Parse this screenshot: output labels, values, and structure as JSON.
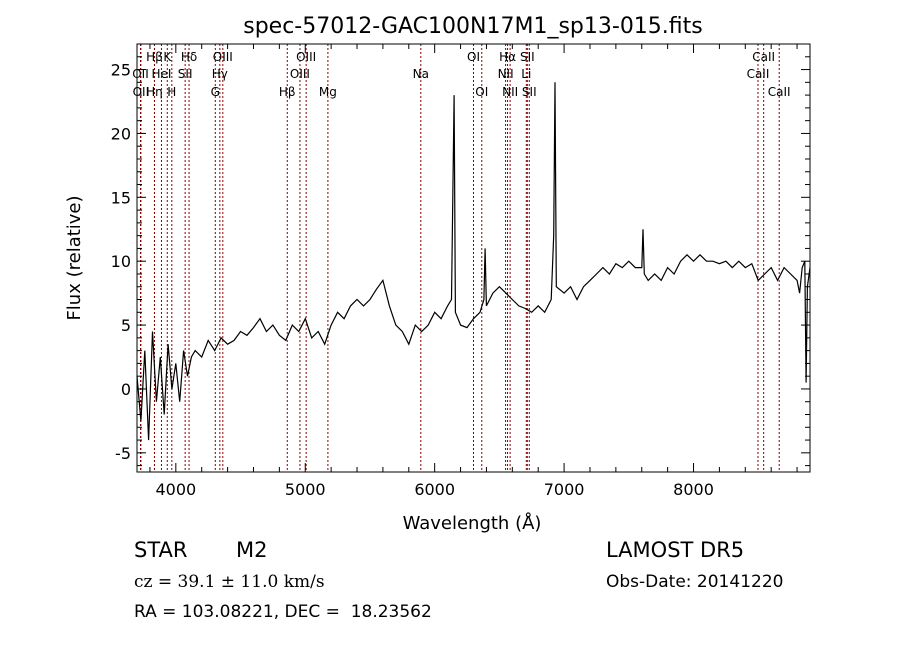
{
  "chart_data": {
    "type": "line",
    "title": "spec-57012-GAC100N17M1_sp13-015.fits",
    "xlabel": "Wavelength (Å)",
    "ylabel": "Flux (relative)",
    "xlim": [
      3700,
      8900
    ],
    "ylim": [
      -6.5,
      27
    ],
    "x_ticks": [
      4000,
      5000,
      6000,
      7000,
      8000
    ],
    "y_ticks": [
      -5,
      0,
      5,
      10,
      15,
      20,
      25
    ],
    "grid": false,
    "line_color": "#000000",
    "marker_color": "#8b0000",
    "series": [
      {
        "values": [
          [
            3700,
            1.0
          ],
          [
            3730,
            -2.5
          ],
          [
            3760,
            3.0
          ],
          [
            3790,
            -4.0
          ],
          [
            3820,
            4.5
          ],
          [
            3850,
            -1.0
          ],
          [
            3880,
            2.5
          ],
          [
            3910,
            -2.0
          ],
          [
            3940,
            3.5
          ],
          [
            3970,
            0.0
          ],
          [
            4000,
            2.0
          ],
          [
            4030,
            -1.0
          ],
          [
            4060,
            3.0
          ],
          [
            4090,
            1.0
          ],
          [
            4120,
            2.5
          ],
          [
            4150,
            3.0
          ],
          [
            4200,
            2.5
          ],
          [
            4250,
            3.8
          ],
          [
            4300,
            3.0
          ],
          [
            4350,
            4.0
          ],
          [
            4400,
            3.5
          ],
          [
            4450,
            3.8
          ],
          [
            4500,
            4.5
          ],
          [
            4550,
            4.2
          ],
          [
            4600,
            4.8
          ],
          [
            4650,
            5.5
          ],
          [
            4700,
            4.5
          ],
          [
            4750,
            5.0
          ],
          [
            4800,
            4.2
          ],
          [
            4850,
            3.8
          ],
          [
            4900,
            5.0
          ],
          [
            4950,
            4.5
          ],
          [
            5000,
            5.5
          ],
          [
            5050,
            4.0
          ],
          [
            5100,
            4.5
          ],
          [
            5150,
            3.5
          ],
          [
            5200,
            5.0
          ],
          [
            5250,
            6.0
          ],
          [
            5300,
            5.5
          ],
          [
            5350,
            6.5
          ],
          [
            5400,
            7.0
          ],
          [
            5450,
            6.5
          ],
          [
            5500,
            7.0
          ],
          [
            5550,
            7.8
          ],
          [
            5600,
            8.5
          ],
          [
            5650,
            6.5
          ],
          [
            5700,
            5.0
          ],
          [
            5750,
            4.5
          ],
          [
            5800,
            3.5
          ],
          [
            5850,
            5.0
          ],
          [
            5900,
            4.5
          ],
          [
            5950,
            5.0
          ],
          [
            6000,
            6.0
          ],
          [
            6050,
            5.5
          ],
          [
            6100,
            6.5
          ],
          [
            6130,
            7.0
          ],
          [
            6150,
            23.0
          ],
          [
            6160,
            6.0
          ],
          [
            6200,
            5.0
          ],
          [
            6250,
            4.8
          ],
          [
            6300,
            5.5
          ],
          [
            6350,
            6.0
          ],
          [
            6380,
            7.0
          ],
          [
            6390,
            11.0
          ],
          [
            6400,
            6.5
          ],
          [
            6450,
            7.5
          ],
          [
            6500,
            8.0
          ],
          [
            6550,
            7.5
          ],
          [
            6600,
            7.0
          ],
          [
            6650,
            6.5
          ],
          [
            6700,
            6.3
          ],
          [
            6750,
            6.0
          ],
          [
            6800,
            6.5
          ],
          [
            6850,
            6.0
          ],
          [
            6900,
            7.0
          ],
          [
            6920,
            12.0
          ],
          [
            6930,
            24.0
          ],
          [
            6940,
            8.0
          ],
          [
            7000,
            7.5
          ],
          [
            7050,
            8.0
          ],
          [
            7100,
            7.0
          ],
          [
            7150,
            8.0
          ],
          [
            7200,
            8.5
          ],
          [
            7250,
            9.0
          ],
          [
            7300,
            9.5
          ],
          [
            7350,
            9.0
          ],
          [
            7400,
            9.8
          ],
          [
            7450,
            9.5
          ],
          [
            7500,
            10.0
          ],
          [
            7550,
            9.5
          ],
          [
            7600,
            9.5
          ],
          [
            7610,
            12.5
          ],
          [
            7620,
            9.0
          ],
          [
            7650,
            8.5
          ],
          [
            7700,
            9.0
          ],
          [
            7750,
            8.5
          ],
          [
            7800,
            9.5
          ],
          [
            7850,
            9.0
          ],
          [
            7900,
            10.0
          ],
          [
            7950,
            10.5
          ],
          [
            8000,
            10.0
          ],
          [
            8050,
            10.5
          ],
          [
            8100,
            10.0
          ],
          [
            8150,
            10.0
          ],
          [
            8200,
            9.8
          ],
          [
            8250,
            10.0
          ],
          [
            8300,
            9.5
          ],
          [
            8350,
            10.0
          ],
          [
            8400,
            9.5
          ],
          [
            8450,
            9.8
          ],
          [
            8500,
            8.5
          ],
          [
            8550,
            9.0
          ],
          [
            8600,
            9.5
          ],
          [
            8650,
            8.5
          ],
          [
            8700,
            9.5
          ],
          [
            8750,
            9.0
          ],
          [
            8800,
            8.5
          ],
          [
            8820,
            7.5
          ],
          [
            8840,
            9.5
          ],
          [
            8860,
            10.0
          ],
          [
            8870,
            0.5
          ],
          [
            8880,
            8.0
          ],
          [
            8900,
            9.5
          ]
        ]
      }
    ],
    "lines": [
      {
        "label": "Hβ",
        "x": 3835,
        "row": 0
      },
      {
        "label": "OII",
        "x": 3727,
        "row": 1
      },
      {
        "label": "OII",
        "x": 3730,
        "row": 2
      },
      {
        "label": "Hη",
        "x": 3835,
        "row": 2
      },
      {
        "label": "K",
        "x": 3934,
        "row": 0
      },
      {
        "label": "HeI",
        "x": 3889,
        "row": 1
      },
      {
        "label": "H",
        "x": 3969,
        "row": 2
      },
      {
        "label": "Hδ",
        "x": 4102,
        "row": 0
      },
      {
        "label": "SII",
        "x": 4072,
        "row": 1
      },
      {
        "label": "OIII",
        "x": 4363,
        "row": 0
      },
      {
        "label": "Hγ",
        "x": 4340,
        "row": 1
      },
      {
        "label": "G",
        "x": 4305,
        "row": 2
      },
      {
        "label": "OIII",
        "x": 5007,
        "row": 0
      },
      {
        "label": "OIII",
        "x": 4959,
        "row": 1
      },
      {
        "label": "Hβ",
        "x": 4861,
        "row": 2
      },
      {
        "label": "Mg",
        "x": 5175,
        "row": 2
      },
      {
        "label": "Na",
        "x": 5893,
        "row": 1
      },
      {
        "label": "OI",
        "x": 6300,
        "row": 0
      },
      {
        "label": "OI",
        "x": 6364,
        "row": 2
      },
      {
        "label": "Hα",
        "x": 6563,
        "row": 0
      },
      {
        "label": "NII",
        "x": 6548,
        "row": 1
      },
      {
        "label": "NII",
        "x": 6583,
        "row": 2
      },
      {
        "label": "SII",
        "x": 6716,
        "row": 0
      },
      {
        "label": "Li",
        "x": 6708,
        "row": 1
      },
      {
        "label": "SII",
        "x": 6731,
        "row": 2
      },
      {
        "label": "CaII",
        "x": 8542,
        "row": 0
      },
      {
        "label": "CaII",
        "x": 8498,
        "row": 1
      },
      {
        "label": "CaII",
        "x": 8662,
        "row": 2
      }
    ]
  },
  "info": {
    "obj_class": "STAR",
    "obj_subclass": "M2",
    "survey": "LAMOST DR5",
    "cz": "cz = 39.1 ± 11.0 km/s",
    "obs_date": "Obs-Date: 20141220",
    "radec": "RA = 103.08221, DEC =  18.23562"
  }
}
